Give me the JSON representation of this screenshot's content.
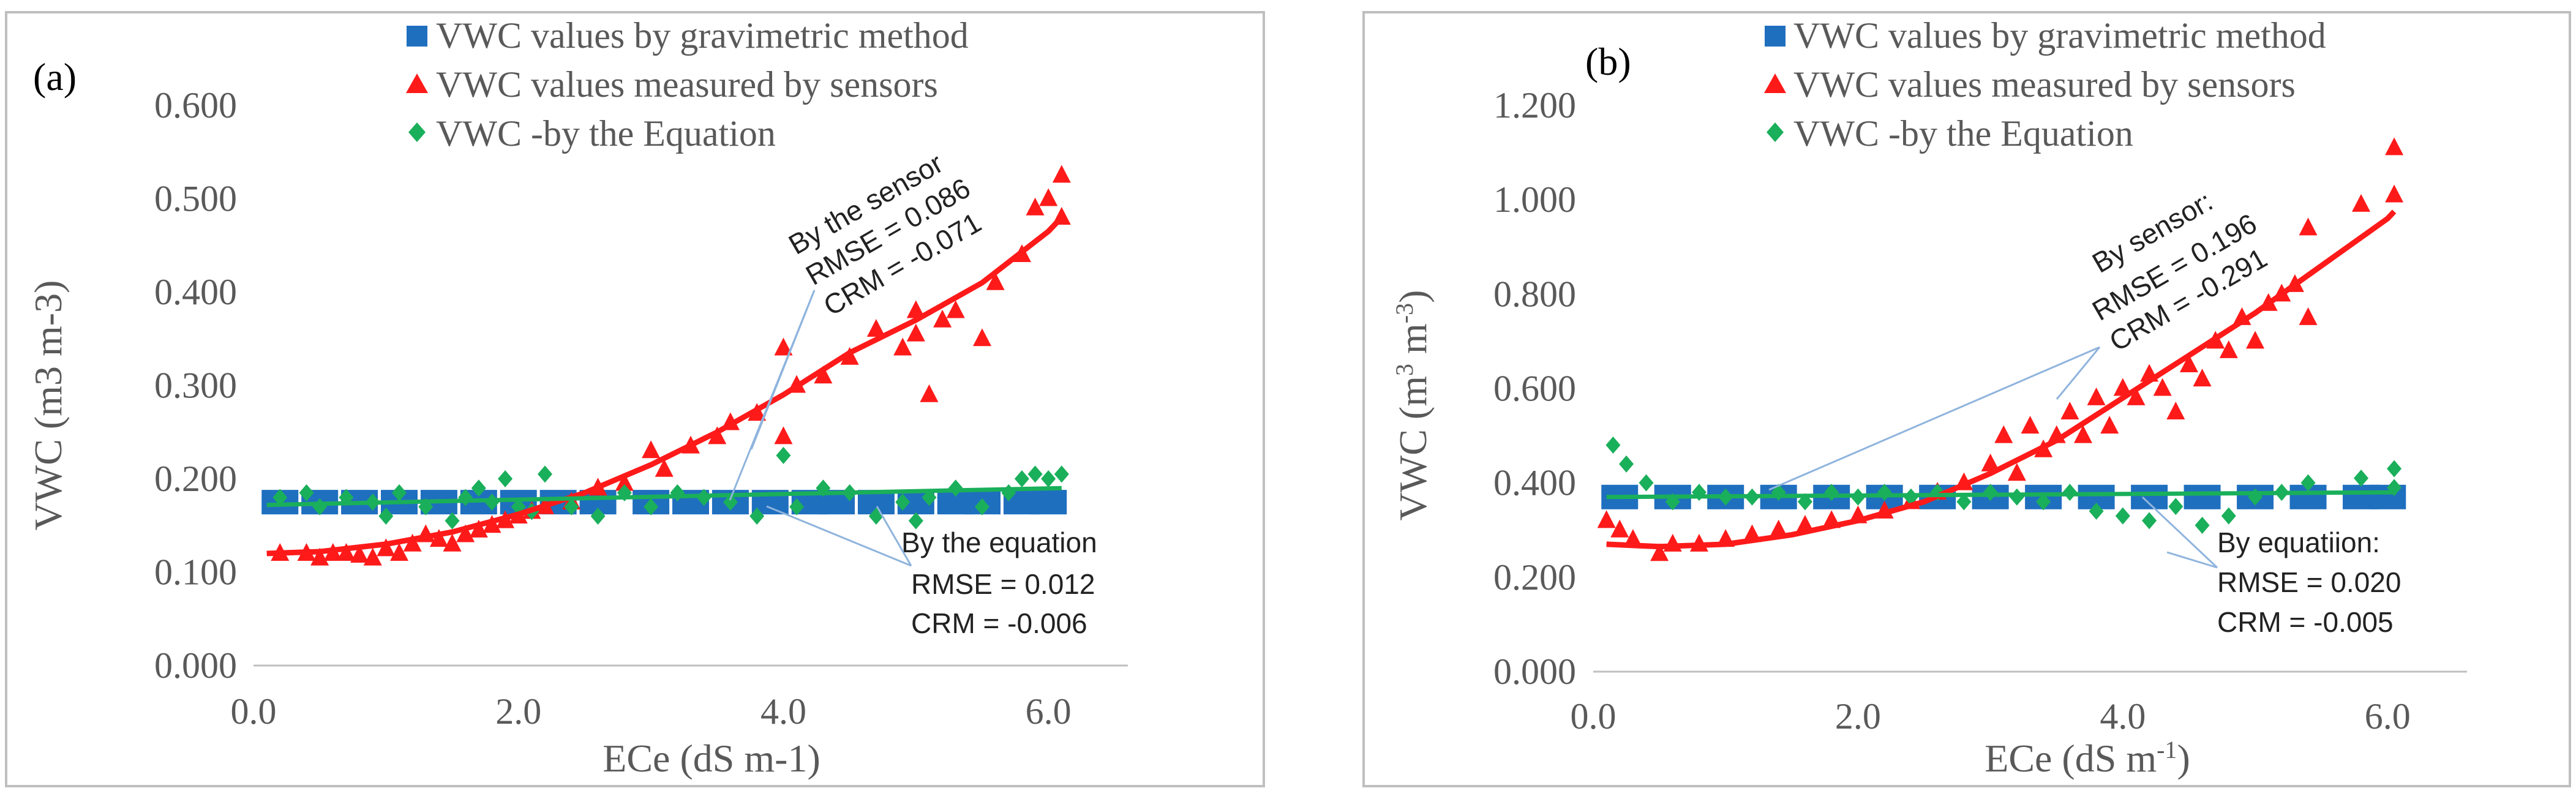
{
  "colors": {
    "gravimetric": "#1f6fbf",
    "sensor": "#ff1a1a",
    "equation": "#1aaf5a",
    "axis": "#bfbfbf",
    "text": "#595959",
    "leader": "#8fb4dd"
  },
  "chart_data": [
    {
      "type": "scatter",
      "panel_label": "(a)",
      "xlabel": "ECe (dS m-1)",
      "ylabel": "VWC (m3 m-3)",
      "xlim": [
        0,
        6.6
      ],
      "ylim": [
        0,
        0.6
      ],
      "xticks": [
        0,
        2,
        4,
        6
      ],
      "xtick_labels": [
        "0.0",
        "2.0",
        "4.0",
        "6.0"
      ],
      "yticks": [
        0,
        0.1,
        0.2,
        0.3,
        0.4,
        0.5,
        0.6
      ],
      "ytick_labels": [
        "0.000",
        "0.100",
        "0.200",
        "0.300",
        "0.400",
        "0.500",
        "0.600"
      ],
      "legend": {
        "position": "top",
        "entries": [
          "VWC values by gravimetric method",
          "VWC values measured by sensors",
          "VWC -by the Equation"
        ]
      },
      "series": [
        {
          "name": "VWC values by gravimetric method",
          "marker": "square",
          "points": [
            [
              0.2,
              0.175
            ],
            [
              0.5,
              0.175
            ],
            [
              0.8,
              0.175
            ],
            [
              1.1,
              0.175
            ],
            [
              1.4,
              0.175
            ],
            [
              1.7,
              0.175
            ],
            [
              2.0,
              0.175
            ],
            [
              2.3,
              0.175
            ],
            [
              2.6,
              0.175
            ],
            [
              3.0,
              0.175
            ],
            [
              3.3,
              0.175
            ],
            [
              3.6,
              0.175
            ],
            [
              3.9,
              0.175
            ],
            [
              4.2,
              0.175
            ],
            [
              4.4,
              0.175
            ],
            [
              4.7,
              0.175
            ],
            [
              5.0,
              0.175
            ],
            [
              5.3,
              0.175
            ],
            [
              5.5,
              0.175
            ],
            [
              5.8,
              0.175
            ],
            [
              6.0,
              0.175
            ]
          ]
        },
        {
          "name": "VWC values measured by sensors",
          "marker": "triangle",
          "points": [
            [
              0.2,
              0.12
            ],
            [
              0.4,
              0.12
            ],
            [
              0.5,
              0.115
            ],
            [
              0.6,
              0.12
            ],
            [
              0.7,
              0.12
            ],
            [
              0.8,
              0.118
            ],
            [
              0.9,
              0.115
            ],
            [
              1.0,
              0.125
            ],
            [
              1.1,
              0.12
            ],
            [
              1.2,
              0.13
            ],
            [
              1.3,
              0.14
            ],
            [
              1.4,
              0.135
            ],
            [
              1.5,
              0.13
            ],
            [
              1.6,
              0.14
            ],
            [
              1.7,
              0.145
            ],
            [
              1.8,
              0.15
            ],
            [
              1.9,
              0.155
            ],
            [
              2.0,
              0.16
            ],
            [
              2.1,
              0.165
            ],
            [
              2.2,
              0.17
            ],
            [
              2.4,
              0.175
            ],
            [
              2.6,
              0.19
            ],
            [
              2.8,
              0.195
            ],
            [
              3.0,
              0.23
            ],
            [
              3.1,
              0.21
            ],
            [
              3.3,
              0.235
            ],
            [
              3.5,
              0.245
            ],
            [
              3.6,
              0.26
            ],
            [
              3.8,
              0.27
            ],
            [
              4.0,
              0.245
            ],
            [
              4.0,
              0.34
            ],
            [
              4.1,
              0.3
            ],
            [
              4.3,
              0.31
            ],
            [
              4.5,
              0.33
            ],
            [
              4.7,
              0.36
            ],
            [
              4.9,
              0.34
            ],
            [
              5.0,
              0.38
            ],
            [
              5.0,
              0.355
            ],
            [
              5.1,
              0.29
            ],
            [
              5.2,
              0.37
            ],
            [
              5.3,
              0.38
            ],
            [
              5.5,
              0.35
            ],
            [
              5.6,
              0.41
            ],
            [
              5.8,
              0.44
            ],
            [
              5.9,
              0.49
            ],
            [
              6.0,
              0.5
            ],
            [
              6.1,
              0.525
            ],
            [
              6.1,
              0.48
            ]
          ]
        },
        {
          "name": "VWC -by the Equation",
          "marker": "diamond",
          "points": [
            [
              0.2,
              0.18
            ],
            [
              0.4,
              0.185
            ],
            [
              0.5,
              0.17
            ],
            [
              0.7,
              0.18
            ],
            [
              0.9,
              0.175
            ],
            [
              1.0,
              0.16
            ],
            [
              1.1,
              0.185
            ],
            [
              1.3,
              0.17
            ],
            [
              1.5,
              0.155
            ],
            [
              1.6,
              0.18
            ],
            [
              1.7,
              0.19
            ],
            [
              1.8,
              0.175
            ],
            [
              1.9,
              0.2
            ],
            [
              2.0,
              0.17
            ],
            [
              2.1,
              0.165
            ],
            [
              2.2,
              0.205
            ],
            [
              2.4,
              0.17
            ],
            [
              2.6,
              0.16
            ],
            [
              2.8,
              0.185
            ],
            [
              3.0,
              0.17
            ],
            [
              3.2,
              0.185
            ],
            [
              3.4,
              0.18
            ],
            [
              3.6,
              0.175
            ],
            [
              3.8,
              0.16
            ],
            [
              4.0,
              0.225
            ],
            [
              4.1,
              0.17
            ],
            [
              4.3,
              0.19
            ],
            [
              4.5,
              0.185
            ],
            [
              4.7,
              0.16
            ],
            [
              4.9,
              0.175
            ],
            [
              5.0,
              0.155
            ],
            [
              5.1,
              0.18
            ],
            [
              5.3,
              0.19
            ],
            [
              5.5,
              0.17
            ],
            [
              5.7,
              0.185
            ],
            [
              5.8,
              0.2
            ],
            [
              5.9,
              0.205
            ],
            [
              6.0,
              0.2
            ],
            [
              6.1,
              0.205
            ]
          ]
        },
        {
          "name": "Sensor trend",
          "type": "line",
          "x": [
            0.1,
            0.5,
            1.0,
            1.5,
            2.0,
            2.5,
            3.0,
            3.5,
            4.0,
            4.5,
            5.0,
            5.5,
            6.0,
            6.1
          ],
          "y": [
            0.12,
            0.122,
            0.13,
            0.143,
            0.162,
            0.185,
            0.215,
            0.25,
            0.29,
            0.335,
            0.37,
            0.41,
            0.465,
            0.48
          ]
        },
        {
          "name": "Equation trend",
          "type": "line",
          "x": [
            0.1,
            6.1
          ],
          "y": [
            0.172,
            0.19
          ]
        }
      ],
      "annotations": {
        "sensor": {
          "title": "By the sensor",
          "rmse": "RMSE  = 0.086",
          "crm": "CRM  = -0.071"
        },
        "equation": {
          "title": "By the equation",
          "rmse": "RMSE  = 0.012",
          "crm": "CRM  = -0.006"
        }
      }
    },
    {
      "type": "scatter",
      "panel_label": "(b)",
      "xlabel": "ECe (dS m-1)",
      "ylabel": "VWC (m3 m-3)",
      "xlim": [
        0,
        6.6
      ],
      "ylim": [
        0,
        1.2
      ],
      "xticks": [
        0,
        2,
        4,
        6
      ],
      "xtick_labels": [
        "0.0",
        "2.0",
        "4.0",
        "6.0"
      ],
      "yticks": [
        0,
        0.2,
        0.4,
        0.6,
        0.8,
        1.0,
        1.2
      ],
      "ytick_labels": [
        "0.000",
        "0.200",
        "0.400",
        "0.600",
        "0.800",
        "1.000",
        "1.200"
      ],
      "legend": {
        "position": "top",
        "entries": [
          "VWC values by gravimetric method",
          "VWC values measured by sensors",
          "VWC -by the Equation"
        ]
      },
      "series": [
        {
          "name": "VWC values by gravimetric method",
          "marker": "square",
          "points": [
            [
              0.2,
              0.37
            ],
            [
              0.6,
              0.37
            ],
            [
              1.0,
              0.37
            ],
            [
              1.4,
              0.37
            ],
            [
              1.8,
              0.37
            ],
            [
              2.2,
              0.37
            ],
            [
              2.6,
              0.37
            ],
            [
              3.0,
              0.37
            ],
            [
              3.4,
              0.37
            ],
            [
              3.8,
              0.37
            ],
            [
              4.2,
              0.37
            ],
            [
              4.6,
              0.37
            ],
            [
              5.0,
              0.37
            ],
            [
              5.4,
              0.37
            ],
            [
              5.8,
              0.37
            ],
            [
              6.0,
              0.37
            ]
          ]
        },
        {
          "name": "VWC values measured by sensors",
          "marker": "triangle",
          "points": [
            [
              0.1,
              0.32
            ],
            [
              0.2,
              0.3
            ],
            [
              0.3,
              0.28
            ],
            [
              0.5,
              0.25
            ],
            [
              0.6,
              0.27
            ],
            [
              0.8,
              0.27
            ],
            [
              1.0,
              0.28
            ],
            [
              1.2,
              0.29
            ],
            [
              1.4,
              0.3
            ],
            [
              1.6,
              0.31
            ],
            [
              1.8,
              0.32
            ],
            [
              2.0,
              0.33
            ],
            [
              2.2,
              0.34
            ],
            [
              2.4,
              0.36
            ],
            [
              2.6,
              0.38
            ],
            [
              2.8,
              0.4
            ],
            [
              3.0,
              0.44
            ],
            [
              3.1,
              0.5
            ],
            [
              3.2,
              0.42
            ],
            [
              3.3,
              0.52
            ],
            [
              3.4,
              0.47
            ],
            [
              3.5,
              0.5
            ],
            [
              3.6,
              0.55
            ],
            [
              3.7,
              0.5
            ],
            [
              3.8,
              0.58
            ],
            [
              3.9,
              0.52
            ],
            [
              4.0,
              0.6
            ],
            [
              4.1,
              0.58
            ],
            [
              4.2,
              0.63
            ],
            [
              4.3,
              0.6
            ],
            [
              4.4,
              0.55
            ],
            [
              4.5,
              0.65
            ],
            [
              4.6,
              0.62
            ],
            [
              4.7,
              0.7
            ],
            [
              4.8,
              0.68
            ],
            [
              4.9,
              0.75
            ],
            [
              5.0,
              0.7
            ],
            [
              5.1,
              0.78
            ],
            [
              5.2,
              0.8
            ],
            [
              5.3,
              0.82
            ],
            [
              5.4,
              0.94
            ],
            [
              5.4,
              0.75
            ],
            [
              5.8,
              0.99
            ],
            [
              6.05,
              1.01
            ],
            [
              6.05,
              1.11
            ]
          ]
        },
        {
          "name": "VWC -by the Equation",
          "marker": "diamond",
          "points": [
            [
              0.15,
              0.48
            ],
            [
              0.25,
              0.44
            ],
            [
              0.4,
              0.4
            ],
            [
              0.6,
              0.36
            ],
            [
              0.8,
              0.38
            ],
            [
              1.0,
              0.37
            ],
            [
              1.2,
              0.37
            ],
            [
              1.4,
              0.38
            ],
            [
              1.6,
              0.36
            ],
            [
              1.8,
              0.38
            ],
            [
              2.0,
              0.37
            ],
            [
              2.2,
              0.38
            ],
            [
              2.4,
              0.37
            ],
            [
              2.6,
              0.38
            ],
            [
              2.8,
              0.36
            ],
            [
              3.0,
              0.38
            ],
            [
              3.2,
              0.37
            ],
            [
              3.4,
              0.36
            ],
            [
              3.6,
              0.38
            ],
            [
              3.8,
              0.34
            ],
            [
              4.0,
              0.33
            ],
            [
              4.2,
              0.32
            ],
            [
              4.4,
              0.35
            ],
            [
              4.6,
              0.31
            ],
            [
              4.8,
              0.33
            ],
            [
              5.0,
              0.37
            ],
            [
              5.2,
              0.38
            ],
            [
              5.4,
              0.4
            ],
            [
              5.8,
              0.41
            ],
            [
              6.05,
              0.43
            ],
            [
              6.05,
              0.39
            ]
          ]
        },
        {
          "name": "Sensor trend",
          "type": "line",
          "x": [
            0.1,
            0.5,
            1.0,
            1.5,
            2.0,
            2.5,
            3.0,
            3.5,
            4.0,
            4.5,
            5.0,
            5.5,
            6.0,
            6.05
          ],
          "y": [
            0.27,
            0.265,
            0.27,
            0.29,
            0.32,
            0.36,
            0.42,
            0.49,
            0.58,
            0.67,
            0.76,
            0.86,
            0.96,
            0.975
          ]
        },
        {
          "name": "Equation trend",
          "type": "line",
          "x": [
            0.1,
            6.05
          ],
          "y": [
            0.37,
            0.38
          ]
        }
      ],
      "annotations": {
        "sensor": {
          "title": "By sensor:",
          "rmse": "RMSE = 0.196",
          "crm": "CRM  = -0.291"
        },
        "equation": {
          "title": "By equatiion:",
          "rmse": "RMSE = 0.020",
          "crm": "CRM  = -0.005"
        }
      }
    }
  ]
}
